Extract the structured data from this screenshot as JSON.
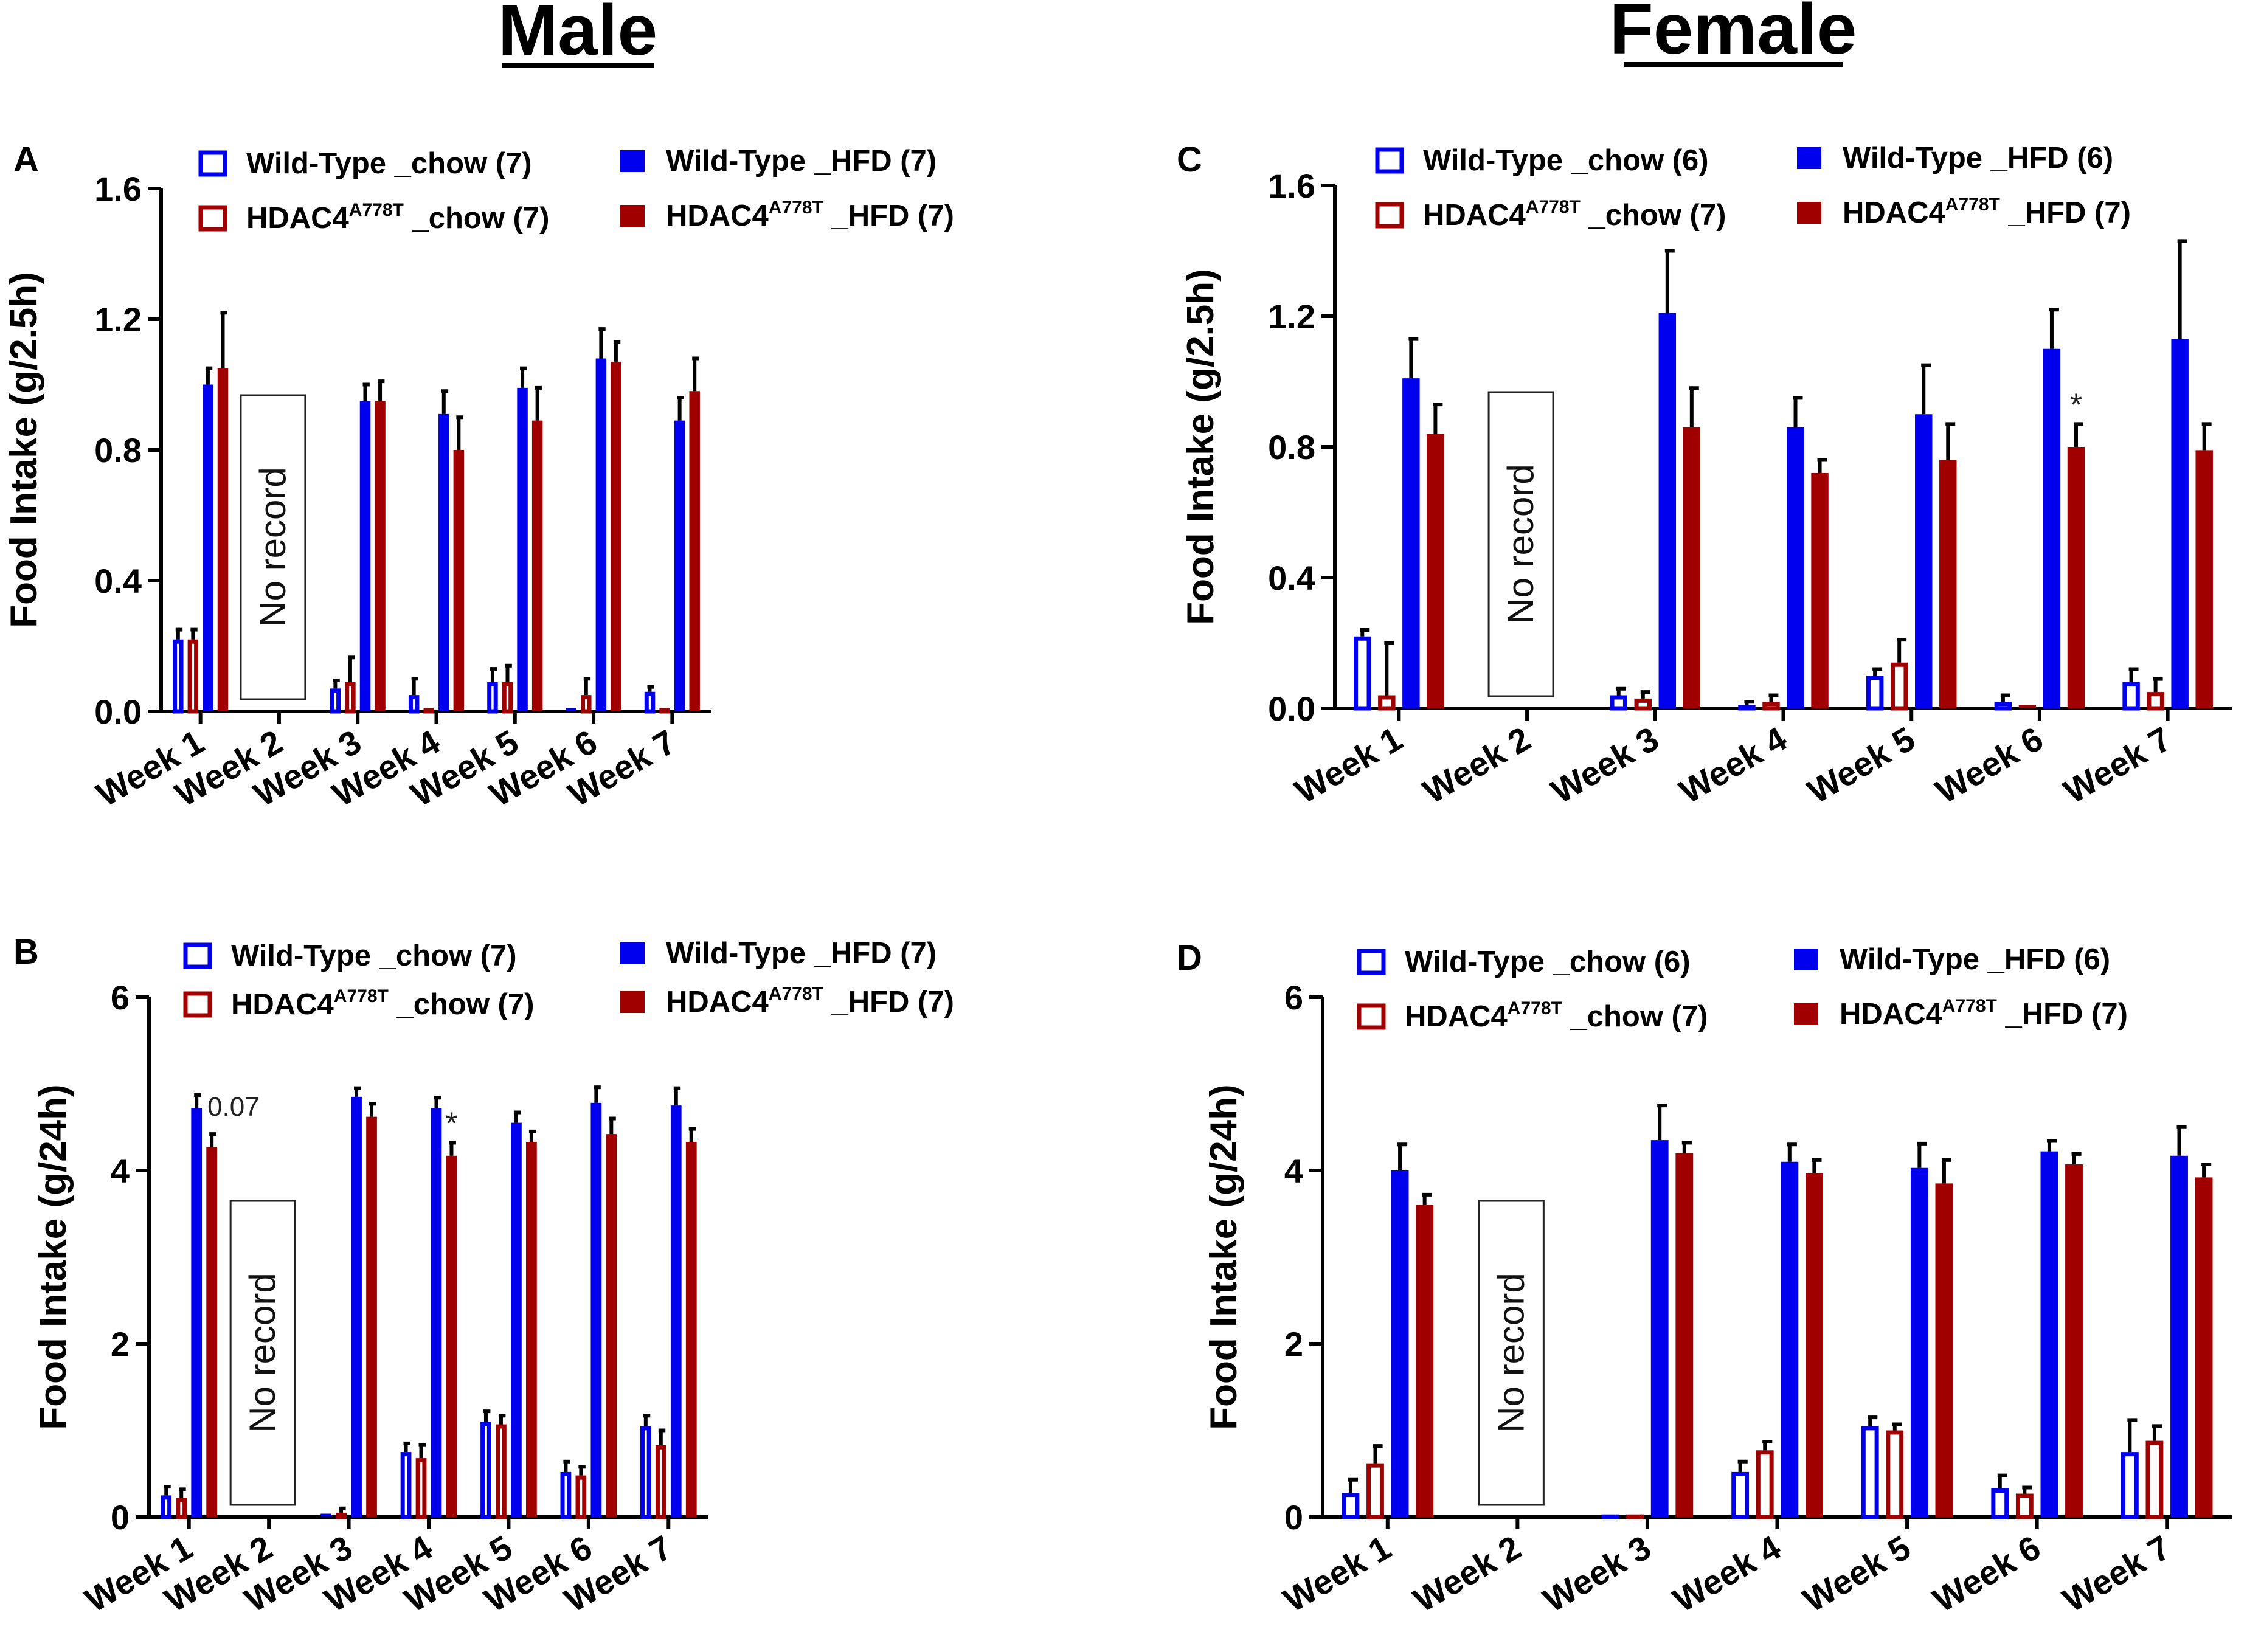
{
  "figure": {
    "male_title": "Male",
    "female_title": "Female"
  },
  "colors": {
    "wt": "#0000ee",
    "hdac": "#a00000",
    "axis": "#000000",
    "errbar": "#000000"
  },
  "legend_labels": {
    "wt_chow": "Wild-Type _chow",
    "hdac_prefix": "HDAC4",
    "hdac_sup": "A778T",
    "hdac_chow": " _chow",
    "wt_hfd": "Wild-Type _HFD",
    "hdac_hfd": " _HFD"
  },
  "no_record_text": "No record",
  "chart_data": [
    {
      "id": "A",
      "panel_letter": "A",
      "type": "bar",
      "ylabel": "Food Intake (g/2.5h)",
      "ylim": [
        0,
        1.6
      ],
      "yticks": [
        "0.0",
        "0.4",
        "0.8",
        "1.2",
        "1.6"
      ],
      "categories": [
        "Week 1",
        "Week 2",
        "Week 3",
        "Week 4",
        "Week 5",
        "Week 6",
        "Week 7"
      ],
      "legend_counts": {
        "wt_chow": "(7)",
        "hdac_chow": "(7)",
        "wt_hfd": "(7)",
        "hdac_hfd": "(7)"
      },
      "no_record_week": "Week 2",
      "series": [
        {
          "name": "Wild-Type _chow (7)",
          "key": "wt_chow",
          "values": [
            0.22,
            null,
            0.07,
            0.05,
            0.09,
            0.0,
            0.06
          ],
          "errors": [
            0.03,
            null,
            0.025,
            0.05,
            0.04,
            0.0,
            0.015
          ]
        },
        {
          "name": "HDAC4 A778T _chow (7)",
          "key": "hdac_chow",
          "values": [
            0.22,
            null,
            0.09,
            0.01,
            0.09,
            0.05,
            0.01
          ],
          "errors": [
            0.03,
            null,
            0.075,
            0.0,
            0.05,
            0.05,
            0.0
          ]
        },
        {
          "name": "Wild-Type _HFD (7)",
          "key": "wt_hfd",
          "values": [
            1.0,
            null,
            0.95,
            0.91,
            0.99,
            1.08,
            0.89
          ],
          "errors": [
            0.05,
            null,
            0.05,
            0.07,
            0.06,
            0.09,
            0.07
          ]
        },
        {
          "name": "HDAC4 A778T _HFD (7)",
          "key": "hdac_hfd",
          "values": [
            1.05,
            null,
            0.95,
            0.8,
            0.89,
            1.07,
            0.98
          ],
          "errors": [
            0.17,
            null,
            0.06,
            0.1,
            0.1,
            0.06,
            0.1
          ]
        }
      ],
      "annotations": []
    },
    {
      "id": "C",
      "panel_letter": "C",
      "type": "bar",
      "ylabel": "Food Intake (g/2.5h)",
      "ylim": [
        0,
        1.6
      ],
      "yticks": [
        "0.0",
        "0.4",
        "0.8",
        "1.2",
        "1.6"
      ],
      "categories": [
        "Week 1",
        "Week 2",
        "Week 3",
        "Week 4",
        "Week 5",
        "Week 6",
        "Week 7"
      ],
      "legend_counts": {
        "wt_chow": "(6)",
        "hdac_chow": "(7)",
        "wt_hfd": "(6)",
        "hdac_hfd": "(7)"
      },
      "no_record_week": "Week 2",
      "series": [
        {
          "name": "Wild-Type _chow (6)",
          "key": "wt_chow",
          "values": [
            0.22,
            null,
            0.04,
            0.01,
            0.1,
            0.02,
            0.08
          ],
          "errors": [
            0.02,
            null,
            0.02,
            0.01,
            0.02,
            0.02,
            0.04
          ]
        },
        {
          "name": "HDAC4 A778T _chow (7)",
          "key": "hdac_chow",
          "values": [
            0.04,
            null,
            0.03,
            0.02,
            0.14,
            0.0,
            0.05
          ],
          "errors": [
            0.16,
            null,
            0.02,
            0.02,
            0.07,
            0.0,
            0.04
          ]
        },
        {
          "name": "Wild-Type _HFD (6)",
          "key": "wt_hfd",
          "values": [
            1.01,
            null,
            1.21,
            0.86,
            0.9,
            1.1,
            1.13
          ],
          "errors": [
            0.12,
            null,
            0.19,
            0.09,
            0.15,
            0.12,
            0.3
          ]
        },
        {
          "name": "HDAC4 A778T _HFD (7)",
          "key": "hdac_hfd",
          "values": [
            0.84,
            null,
            0.86,
            0.72,
            0.76,
            0.8,
            0.79
          ],
          "errors": [
            0.09,
            null,
            0.12,
            0.04,
            0.11,
            0.07,
            0.08
          ]
        }
      ],
      "annotations": [
        {
          "week": "Week 6",
          "series": "hdac_hfd",
          "text": "*"
        }
      ]
    },
    {
      "id": "B",
      "panel_letter": "B",
      "type": "bar",
      "ylabel": "Food Intake (g/24h)",
      "ylim": [
        0,
        6
      ],
      "yticks": [
        "0",
        "2",
        "4",
        "6"
      ],
      "categories": [
        "Week 1",
        "Week 2",
        "Week 3",
        "Week 4",
        "Week 5",
        "Week 6",
        "Week 7"
      ],
      "legend_counts": {
        "wt_chow": "(7)",
        "hdac_chow": "(7)",
        "wt_hfd": "(7)",
        "hdac_hfd": "(7)"
      },
      "no_record_week": "Week 2",
      "series": [
        {
          "name": "Wild-Type _chow (7)",
          "key": "wt_chow",
          "values": [
            0.25,
            null,
            0.0,
            0.75,
            1.1,
            0.52,
            1.05
          ],
          "errors": [
            0.1,
            null,
            0.0,
            0.1,
            0.12,
            0.12,
            0.12
          ]
        },
        {
          "name": "HDAC4 A778T _chow (7)",
          "key": "hdac_chow",
          "values": [
            0.22,
            null,
            0.05,
            0.68,
            1.07,
            0.48,
            0.83
          ],
          "errors": [
            0.1,
            null,
            0.05,
            0.15,
            0.1,
            0.1,
            0.17
          ]
        },
        {
          "name": "Wild-Type _HFD (7)",
          "key": "wt_hfd",
          "values": [
            4.72,
            null,
            4.85,
            4.72,
            4.55,
            4.78,
            4.75
          ],
          "errors": [
            0.15,
            null,
            0.1,
            0.12,
            0.12,
            0.18,
            0.2
          ]
        },
        {
          "name": "HDAC4 A778T _HFD (7)",
          "key": "hdac_hfd",
          "values": [
            4.27,
            null,
            4.62,
            4.17,
            4.33,
            4.42,
            4.33
          ],
          "errors": [
            0.15,
            null,
            0.15,
            0.15,
            0.12,
            0.18,
            0.15
          ]
        }
      ],
      "annotations": [
        {
          "week": "Week 1",
          "series": "hdac_hfd",
          "text": "0.07"
        },
        {
          "week": "Week 4",
          "series": "hdac_hfd",
          "text": "*"
        }
      ]
    },
    {
      "id": "D",
      "panel_letter": "D",
      "type": "bar",
      "ylabel": "Food Intake (g/24h)",
      "ylim": [
        0,
        6
      ],
      "yticks": [
        "0",
        "2",
        "4",
        "6"
      ],
      "categories": [
        "Week 1",
        "Week 2",
        "Week 3",
        "Week 4",
        "Week 5",
        "Week 6",
        "Week 7"
      ],
      "legend_counts": {
        "wt_chow": "(6)",
        "hdac_chow": "(7)",
        "wt_hfd": "(6)",
        "hdac_hfd": "(7)"
      },
      "no_record_week": "Week 2",
      "series": [
        {
          "name": "Wild-Type _chow (6)",
          "key": "wt_chow",
          "values": [
            0.28,
            null,
            0.03,
            0.52,
            1.05,
            0.33,
            0.75
          ],
          "errors": [
            0.15,
            null,
            0.0,
            0.12,
            0.1,
            0.15,
            0.37
          ]
        },
        {
          "name": "HDAC4 A778T _chow (7)",
          "key": "hdac_chow",
          "values": [
            0.62,
            null,
            0.03,
            0.77,
            1.0,
            0.27,
            0.88
          ],
          "errors": [
            0.2,
            null,
            0.0,
            0.1,
            0.07,
            0.07,
            0.17
          ]
        },
        {
          "name": "Wild-Type _HFD (6)",
          "key": "wt_hfd",
          "values": [
            4.0,
            null,
            4.35,
            4.1,
            4.03,
            4.22,
            4.17
          ],
          "errors": [
            0.3,
            null,
            0.4,
            0.2,
            0.28,
            0.12,
            0.33
          ]
        },
        {
          "name": "HDAC4 A778T _HFD (7)",
          "key": "hdac_hfd",
          "values": [
            3.6,
            null,
            4.2,
            3.97,
            3.85,
            4.07,
            3.92
          ],
          "errors": [
            0.12,
            null,
            0.12,
            0.15,
            0.27,
            0.12,
            0.15
          ]
        }
      ],
      "annotations": []
    }
  ]
}
